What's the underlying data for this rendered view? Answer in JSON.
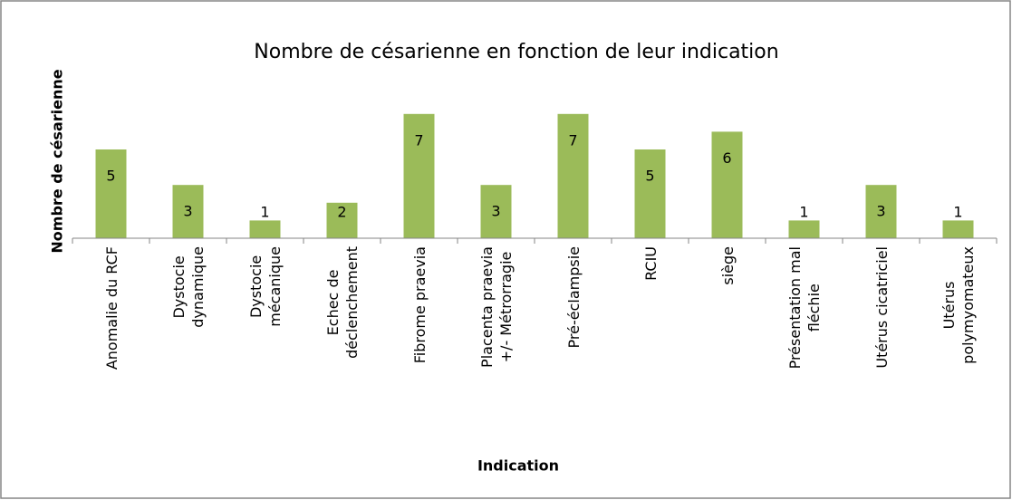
{
  "chart_data": {
    "type": "bar",
    "title": "Nombre de césarienne en fonction de leur indication",
    "x_label": "Indication",
    "y_label": "Nombre de césarienne",
    "categories": [
      "Anomalie du RCF",
      "Dystocie\ndynamique",
      "Dystocie\nmécanique",
      "Echec de\ndéclenchement",
      "Fibrome praevia",
      "Placenta praevia\n+/- Métrorragie",
      "Pré-éclampsie",
      "RCIU",
      "siège",
      "Présentation mal\nfléchie",
      "Utérus cicatriciel",
      "Utérus\npolymyomateux"
    ],
    "values": [
      5,
      3,
      1,
      2,
      7,
      3,
      7,
      5,
      6,
      1,
      3,
      1
    ],
    "color": "#9bbb59"
  }
}
